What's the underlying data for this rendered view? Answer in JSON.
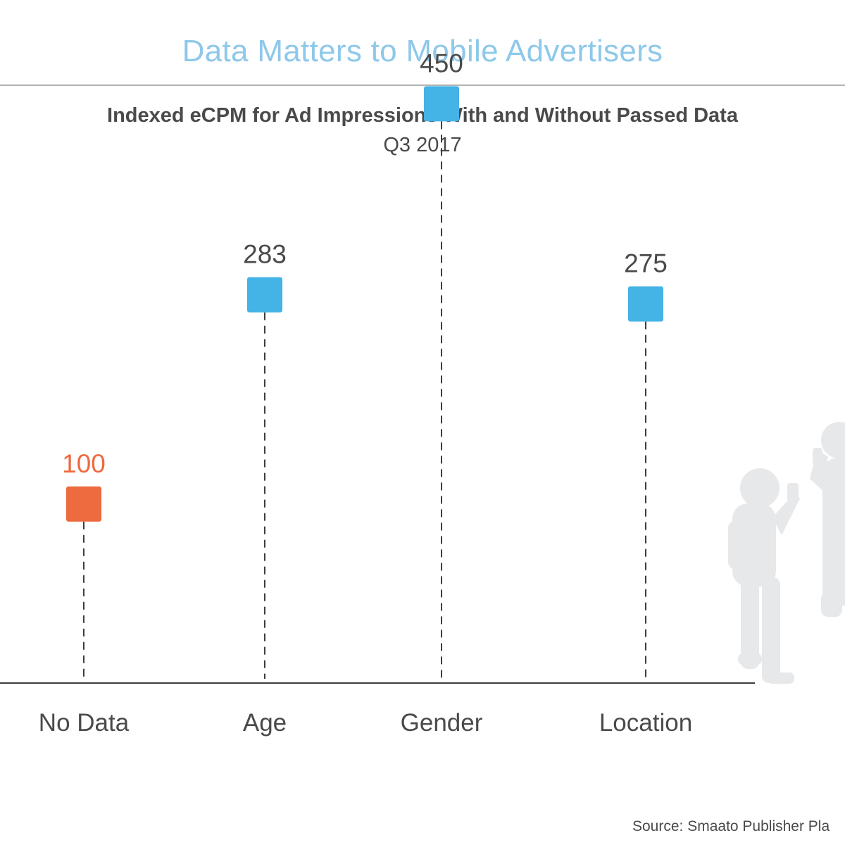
{
  "title": "Data Matters to Mobile Advertisers",
  "source": "Source: Smaato Publisher Pla",
  "colors": {
    "title": "#8ec8ea",
    "baseline_marker": "#ee6a3f",
    "data_marker": "#44b3e6",
    "text": "#4a4a4a",
    "silhouette": "#e6e8ea"
  },
  "illustration": "silhouette of a child and an adult holding phones",
  "chart_data": {
    "type": "scatter",
    "title": "Indexed eCPM for Ad Impressions With and Without Passed Data",
    "subtitle": "Q3 2017",
    "categories": [
      "No Data",
      "Age",
      "Gender",
      "Location"
    ],
    "values": [
      100,
      283,
      450,
      275
    ],
    "value_labels": [
      "100",
      "283",
      "450",
      "275"
    ],
    "highlight": [
      "baseline",
      "data",
      "data",
      "data"
    ],
    "markers": "squares with dashed drop lines",
    "ylim": [
      -75,
      510
    ],
    "grid": false,
    "legend": "none"
  }
}
